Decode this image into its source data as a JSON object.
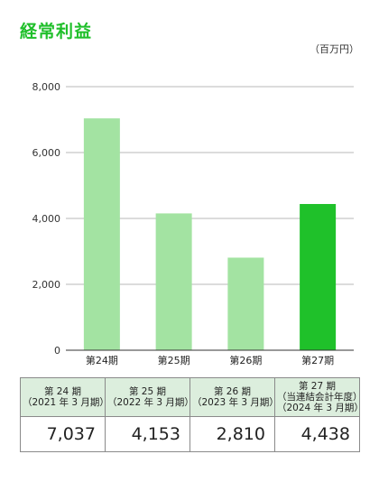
{
  "page": {
    "title": "経常利益",
    "unit": "（百万円）"
  },
  "chart_data": {
    "type": "bar",
    "title": "経常利益",
    "unit": "（百万円）",
    "categories": [
      "第24期",
      "第25期",
      "第26期",
      "第27期"
    ],
    "values": [
      7037,
      4153,
      2810,
      4438
    ],
    "ylim": [
      0,
      8000
    ],
    "yticks": [
      "0",
      "2,000",
      "4,000",
      "6,000",
      "8,000"
    ],
    "ytick_values": [
      0,
      2000,
      4000,
      6000,
      8000
    ],
    "grid": true,
    "colors": {
      "bar": "#a3e3a2",
      "highlight": "#1fc12a",
      "grid": "#b8b8b8",
      "axis": "#333333"
    },
    "highlight_index": 3
  },
  "table": {
    "headers": [
      [
        "第 24 期",
        "（2021 年 3 月期）"
      ],
      [
        "第 25 期",
        "（2022 年 3 月期）"
      ],
      [
        "第 26 期",
        "（2023 年 3 月期）"
      ],
      [
        "第 27 期",
        "（当連結会計年度）",
        "（2024 年 3 月期）"
      ]
    ],
    "values": [
      "7,037",
      "4,153",
      "2,810",
      "4,438"
    ]
  }
}
